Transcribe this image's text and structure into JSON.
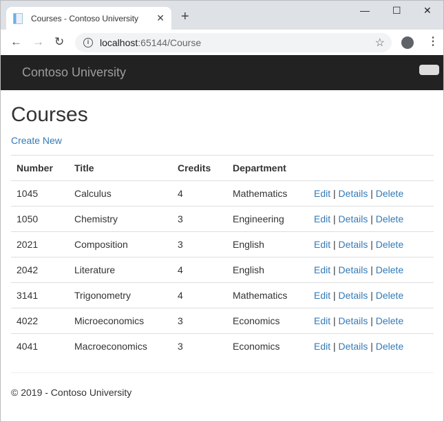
{
  "browser": {
    "tab_title": "Courses - Contoso University",
    "url_host": "localhost",
    "url_path": ":65144/Course"
  },
  "navbar": {
    "brand": "Contoso University"
  },
  "page": {
    "title": "Courses",
    "create_new": "Create New"
  },
  "table": {
    "headers": [
      "Number",
      "Title",
      "Credits",
      "Department"
    ],
    "rows": [
      [
        "1045",
        "Calculus",
        "4",
        "Mathematics"
      ],
      [
        "1050",
        "Chemistry",
        "3",
        "Engineering"
      ],
      [
        "2021",
        "Composition",
        "3",
        "English"
      ],
      [
        "2042",
        "Literature",
        "4",
        "English"
      ],
      [
        "3141",
        "Trigonometry",
        "4",
        "Mathematics"
      ],
      [
        "4022",
        "Microeconomics",
        "3",
        "Economics"
      ],
      [
        "4041",
        "Macroeconomics",
        "3",
        "Economics"
      ]
    ],
    "actions": {
      "edit": "Edit",
      "details": "Details",
      "delete": "Delete",
      "sep": "|"
    }
  },
  "footer": {
    "text": "© 2019 - Contoso University"
  }
}
